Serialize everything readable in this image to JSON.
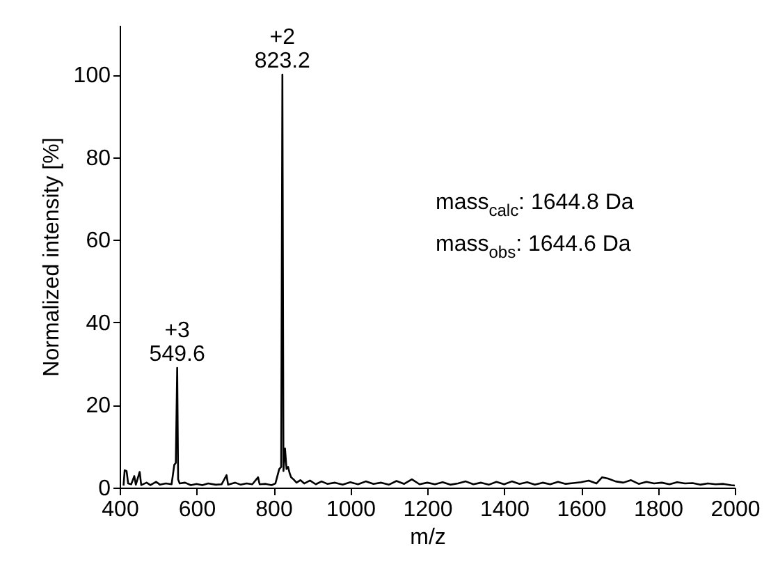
{
  "chart_data": {
    "type": "line",
    "xlabel": "m/z",
    "ylabel": "Normalized intensity [%]",
    "series": [
      {
        "color": "#000000",
        "x": [
          410,
          413,
          418,
          422,
          430,
          438,
          442,
          452,
          456,
          470,
          480,
          495,
          505,
          520,
          535,
          542,
          546,
          549.6,
          552,
          556,
          570,
          585,
          600,
          615,
          630,
          650,
          665,
          678,
          682,
          700,
          715,
          730,
          745,
          760,
          764,
          780,
          795,
          805,
          815,
          820,
          823.2,
          826,
          830,
          834,
          838,
          842,
          846,
          852,
          860,
          870,
          880,
          895,
          910,
          925,
          940,
          960,
          980,
          1000,
          1020,
          1040,
          1060,
          1080,
          1100,
          1120,
          1140,
          1160,
          1180,
          1200,
          1220,
          1240,
          1260,
          1280,
          1300,
          1320,
          1340,
          1360,
          1380,
          1400,
          1420,
          1440,
          1460,
          1480,
          1500,
          1520,
          1540,
          1560,
          1580,
          1600,
          1620,
          1640,
          1655,
          1670,
          1690,
          1710,
          1730,
          1750,
          1770,
          1790,
          1810,
          1830,
          1850,
          1870,
          1890,
          1910,
          1930,
          1950,
          1970,
          1990,
          2000
        ],
        "values": [
          0.5,
          4.2,
          4.0,
          1.0,
          0.8,
          2.8,
          0.7,
          3.8,
          0.6,
          1.2,
          0.6,
          1.4,
          0.7,
          1.0,
          0.8,
          5.5,
          6.0,
          29,
          2.0,
          1.0,
          1.2,
          0.6,
          0.9,
          0.6,
          1.0,
          0.7,
          0.8,
          3.0,
          0.7,
          1.2,
          0.7,
          1.0,
          0.8,
          2.5,
          0.8,
          0.9,
          0.6,
          1.0,
          4.5,
          5.0,
          100,
          4.0,
          9.5,
          4.5,
          5.0,
          3.5,
          2.5,
          2.0,
          1.2,
          1.8,
          1.0,
          1.7,
          0.8,
          1.5,
          0.9,
          1.2,
          0.7,
          1.3,
          0.8,
          1.5,
          0.9,
          1.2,
          0.7,
          1.6,
          0.9,
          2.0,
          0.8,
          1.2,
          0.8,
          1.3,
          0.7,
          1.0,
          1.5,
          0.8,
          1.2,
          0.7,
          1.4,
          0.8,
          1.5,
          0.9,
          1.3,
          0.7,
          1.2,
          0.8,
          1.4,
          0.9,
          1.1,
          1.3,
          1.7,
          1.0,
          2.5,
          2.2,
          1.5,
          1.2,
          1.8,
          0.9,
          1.4,
          1.0,
          1.2,
          0.8,
          1.3,
          1.0,
          1.1,
          0.7,
          1.0,
          0.8,
          0.9,
          0.6,
          0.5
        ]
      }
    ],
    "xlim": [
      400,
      2000
    ],
    "xticks": [
      400,
      600,
      800,
      1000,
      1200,
      1400,
      1600,
      1800,
      2000
    ],
    "ylim": [
      0,
      112
    ],
    "yticks": [
      0,
      20,
      40,
      60,
      80,
      100
    ],
    "grid": false,
    "marker": "none",
    "line_style": "solid",
    "annotations": [
      {
        "text": "+2\n823.2",
        "x": 823.2,
        "y": 100
      },
      {
        "text": "+3\n549.6",
        "x": 549.6,
        "y": 29
      },
      "mass$_{calc}$: 1644.8 Da",
      "mass$_{obs}$:  1644.6 Da"
    ]
  }
}
